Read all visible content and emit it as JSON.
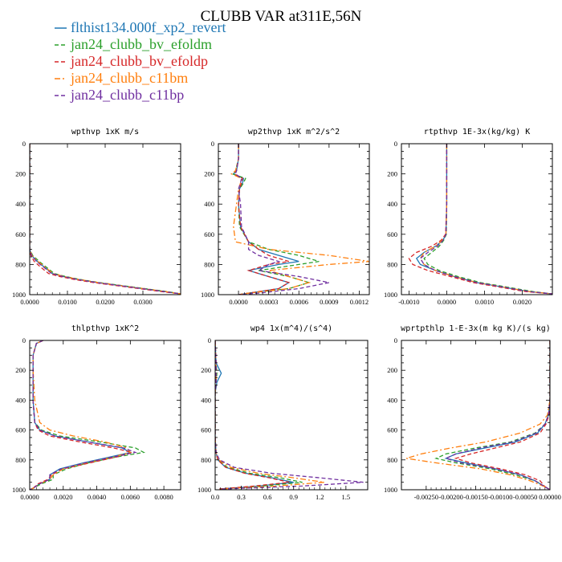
{
  "figure": {
    "title": "CLUBB VAR at311E,56N"
  },
  "legend": [
    {
      "label": "flthist134.000f_xp2_revert",
      "color": "#1f77b4",
      "dash": "solid"
    },
    {
      "label": "jan24_clubb_bv_efoldm",
      "color": "#2ca02c",
      "dash": "dashed"
    },
    {
      "label": "jan24_clubb_bv_efoldp",
      "color": "#d62728",
      "dash": "dashed"
    },
    {
      "label": "jan24_clubb_c11bm",
      "color": "#ff7f0e",
      "dash": "dashdot"
    },
    {
      "label": "jan24_clubb_c11bp",
      "color": "#7030a0",
      "dash": "dashed"
    }
  ],
  "chart_data": [
    {
      "type": "line",
      "title": "wpthvp  1xK m/s",
      "ylim": [
        1000,
        0
      ],
      "yticks": [
        0,
        200,
        400,
        600,
        800,
        1000
      ],
      "xlim": [
        0,
        0.04
      ],
      "xticks": [
        0,
        0.01,
        0.02,
        0.03
      ],
      "xticklabels": [
        "0.0000",
        "0.0100",
        "0.0200",
        "0.0300"
      ],
      "y": [
        0,
        200,
        400,
        600,
        700,
        740,
        780,
        820,
        860,
        880,
        900,
        920,
        940,
        960,
        980,
        995
      ],
      "series": [
        {
          "name": "flthist134.000f_xp2_revert",
          "x": [
            0,
            0,
            0,
            0,
            0,
            0.0005,
            0.002,
            0.004,
            0.006,
            0.009,
            0.013,
            0.018,
            0.024,
            0.03,
            0.036,
            0.04
          ]
        },
        {
          "name": "jan24_clubb_bv_efoldm",
          "x": [
            0,
            0,
            0,
            0,
            0,
            0.0008,
            0.0025,
            0.0045,
            0.0065,
            0.0095,
            0.0135,
            0.0185,
            0.0245,
            0.0305,
            0.0365,
            0.04
          ]
        },
        {
          "name": "jan24_clubb_bv_efoldp",
          "x": [
            0,
            0,
            0,
            0,
            0,
            0.0003,
            0.0012,
            0.003,
            0.005,
            0.008,
            0.012,
            0.017,
            0.023,
            0.029,
            0.035,
            0.04
          ]
        },
        {
          "name": "jan24_clubb_c11bm",
          "x": [
            0,
            0,
            0,
            0,
            0,
            0.0006,
            0.0022,
            0.0042,
            0.0062,
            0.0092,
            0.0132,
            0.0182,
            0.0242,
            0.0302,
            0.0362,
            0.04
          ]
        },
        {
          "name": "jan24_clubb_c11bp",
          "x": [
            0,
            0,
            0,
            0,
            0,
            0.0005,
            0.0018,
            0.0038,
            0.0058,
            0.0088,
            0.0128,
            0.0178,
            0.0238,
            0.0298,
            0.0358,
            0.04
          ]
        }
      ]
    },
    {
      "type": "line",
      "title": "wp2thvp  1xK m^2/s^2",
      "ylim": [
        1000,
        0
      ],
      "yticks": [
        0,
        200,
        400,
        600,
        800,
        1000
      ],
      "xlim": [
        -0.0002,
        0.0013
      ],
      "xticks": [
        0,
        0.0003,
        0.0006,
        0.0009,
        0.0012
      ],
      "xticklabels": [
        "0.0000",
        "0.0003",
        "0.0006",
        "0.0009",
        "0.0012"
      ],
      "y": [
        0,
        100,
        180,
        200,
        230,
        260,
        300,
        400,
        550,
        650,
        700,
        740,
        780,
        800,
        840,
        880,
        920,
        960,
        990,
        1000
      ],
      "series": [
        {
          "name": "flthist134.000f_xp2_revert",
          "x": [
            0,
            0,
            -2e-05,
            -5e-05,
            5e-05,
            4e-05,
            1e-05,
            0,
            2e-05,
            0.0001,
            0.0002,
            0.0004,
            0.0006,
            0.0004,
            0.0001,
            0.0003,
            0.0005,
            0.0004,
            0.0001,
            0
          ]
        },
        {
          "name": "jan24_clubb_bv_efoldm",
          "x": [
            0,
            0,
            -3e-05,
            -6e-05,
            7e-05,
            5e-05,
            1e-05,
            0,
            1e-05,
            0.0001,
            0.0003,
            0.0006,
            0.0008,
            0.0006,
            0.0002,
            0.0005,
            0.0007,
            0.0005,
            0.0001,
            0
          ]
        },
        {
          "name": "jan24_clubb_bv_efoldp",
          "x": [
            0,
            0,
            -2e-05,
            -4e-05,
            4e-05,
            3e-05,
            1e-05,
            0,
            2e-05,
            0.0001,
            0.0002,
            0.0003,
            0.0005,
            0.0003,
            0.0001,
            0.0003,
            0.0005,
            0.0004,
            0.0001,
            0
          ]
        },
        {
          "name": "jan24_clubb_c11bm",
          "x": [
            0,
            0,
            -3e-05,
            -7e-05,
            3e-05,
            2e-05,
            0,
            -2e-05,
            -5e-05,
            -3e-05,
            0.0003,
            0.0009,
            0.0013,
            0.0009,
            0.0003,
            0.0005,
            0.0007,
            0.0005,
            0.0001,
            0
          ]
        },
        {
          "name": "jan24_clubb_c11bp",
          "x": [
            0,
            0,
            -2e-05,
            -3e-05,
            3e-05,
            2e-05,
            0,
            2e-05,
            3e-05,
            0.0001,
            0.0001,
            0.0002,
            0.0004,
            0.0003,
            0.0002,
            0.0006,
            0.0009,
            0.0006,
            0.0002,
            0
          ]
        }
      ]
    },
    {
      "type": "line",
      "title": "rtpthvp  1E-3x(kg/kg) K",
      "ylim": [
        1000,
        0
      ],
      "yticks": [
        0,
        200,
        400,
        600,
        800,
        1000
      ],
      "xlim": [
        -0.0012,
        0.0028
      ],
      "xticks": [
        -0.001,
        0,
        0.001,
        0.002
      ],
      "xticklabels": [
        "-0.0010",
        "0.0000",
        "0.0010",
        "0.0020"
      ],
      "y": [
        0,
        200,
        400,
        600,
        640,
        680,
        720,
        760,
        800,
        840,
        880,
        920,
        950,
        980,
        995
      ],
      "series": [
        {
          "name": "flthist134.000f_xp2_revert",
          "x": [
            0,
            0,
            0,
            -2e-05,
            -0.0001,
            -0.0003,
            -0.0006,
            -0.0008,
            -0.0007,
            -0.0003,
            0.0002,
            0.0008,
            0.0015,
            0.0022,
            0.0028
          ]
        },
        {
          "name": "jan24_clubb_bv_efoldm",
          "x": [
            0,
            0,
            0,
            -1e-05,
            -8e-05,
            -0.0002,
            -0.0004,
            -0.0006,
            -0.0005,
            -0.0002,
            0.0003,
            0.0009,
            0.0016,
            0.0023,
            0.0028
          ]
        },
        {
          "name": "jan24_clubb_bv_efoldp",
          "x": [
            0,
            0,
            0,
            -3e-05,
            -0.00015,
            -0.0004,
            -0.0008,
            -0.001,
            -0.0009,
            -0.0005,
            0.0001,
            0.0007,
            0.0014,
            0.0021,
            0.0028
          ]
        },
        {
          "name": "jan24_clubb_c11bm",
          "x": [
            0,
            0,
            0,
            -2e-05,
            -0.00012,
            -0.0003,
            -0.0006,
            -0.0007,
            -0.0006,
            -0.0003,
            0.0002,
            0.0008,
            0.0015,
            0.0022,
            0.0028
          ]
        },
        {
          "name": "jan24_clubb_c11bp",
          "x": [
            0,
            0,
            0,
            -2e-05,
            -0.0001,
            -0.00025,
            -0.0005,
            -0.0007,
            -0.0006,
            -0.0003,
            0.0002,
            0.0008,
            0.0015,
            0.0022,
            0.0028
          ]
        }
      ]
    },
    {
      "type": "line",
      "title": "thlpthvp  1xK^2",
      "ylim": [
        1000,
        0
      ],
      "yticks": [
        0,
        200,
        400,
        600,
        800,
        1000
      ],
      "xlim": [
        0,
        0.009
      ],
      "xticks": [
        0,
        0.002,
        0.004,
        0.006,
        0.008
      ],
      "xticklabels": [
        "0.0000",
        "0.0020",
        "0.0040",
        "0.0060",
        "0.0080"
      ],
      "y": [
        0,
        20,
        100,
        200,
        400,
        550,
        600,
        640,
        680,
        720,
        750,
        780,
        820,
        860,
        900,
        930,
        960,
        990,
        1000
      ],
      "series": [
        {
          "name": "flthist134.000f_xp2_revert",
          "x": [
            0.0008,
            0.0004,
            0.0002,
            0.0002,
            0.0002,
            0.0003,
            0.0006,
            0.0015,
            0.0035,
            0.0055,
            0.006,
            0.0048,
            0.0032,
            0.0018,
            0.0012,
            0.0012,
            0.0006,
            0.0002,
            0
          ]
        },
        {
          "name": "jan24_clubb_bv_efoldm",
          "x": [
            0.0008,
            0.0004,
            0.0002,
            0.0002,
            0.0002,
            0.0003,
            0.0007,
            0.0018,
            0.0042,
            0.0063,
            0.0068,
            0.0052,
            0.0035,
            0.0022,
            0.0014,
            0.0014,
            0.0007,
            0.0002,
            0
          ]
        },
        {
          "name": "jan24_clubb_bv_efoldp",
          "x": [
            0.0008,
            0.0004,
            0.0002,
            0.0002,
            0.0002,
            0.0003,
            0.0005,
            0.0012,
            0.003,
            0.005,
            0.0061,
            0.0052,
            0.0036,
            0.002,
            0.0013,
            0.0011,
            0.0005,
            0.0002,
            0
          ]
        },
        {
          "name": "jan24_clubb_c11bm",
          "x": [
            0.0008,
            0.0004,
            0.0002,
            0.0002,
            0.0003,
            0.0006,
            0.0012,
            0.0026,
            0.0045,
            0.0058,
            0.006,
            0.005,
            0.0034,
            0.002,
            0.0014,
            0.0012,
            0.0006,
            0.0002,
            0
          ]
        },
        {
          "name": "jan24_clubb_c11bp",
          "x": [
            0.0008,
            0.0004,
            0.0002,
            0.0002,
            0.0002,
            0.0003,
            0.0006,
            0.0015,
            0.0035,
            0.0056,
            0.0063,
            0.005,
            0.0033,
            0.0019,
            0.0012,
            0.0012,
            0.0006,
            0.0002,
            0
          ]
        }
      ]
    },
    {
      "type": "line",
      "title": "wp4  1x(m^4)/(s^4)",
      "ylim": [
        1000,
        0
      ],
      "yticks": [
        0,
        200,
        400,
        600,
        800,
        1000
      ],
      "xlim": [
        0,
        1.75
      ],
      "xticks": [
        0,
        0.3,
        0.6,
        0.9,
        1.2,
        1.5
      ],
      "xticklabels": [
        "0.0",
        "0.3",
        "0.6",
        "0.9",
        "1.2",
        "1.5"
      ],
      "y": [
        0,
        150,
        220,
        280,
        350,
        500,
        650,
        750,
        800,
        850,
        890,
        920,
        950,
        975,
        995
      ],
      "series": [
        {
          "name": "flthist134.000f_xp2_revert",
          "x": [
            0,
            0.01,
            0.07,
            0.02,
            0,
            0,
            0,
            0.01,
            0.03,
            0.12,
            0.35,
            0.65,
            0.9,
            0.5,
            0.05
          ]
        },
        {
          "name": "jan24_clubb_bv_efoldm",
          "x": [
            0,
            0.01,
            0.02,
            0.01,
            0,
            0,
            0,
            0.01,
            0.03,
            0.14,
            0.4,
            0.75,
            1.0,
            0.55,
            0.05
          ]
        },
        {
          "name": "jan24_clubb_bv_efoldp",
          "x": [
            0,
            0.01,
            0.01,
            0.01,
            0,
            0,
            0,
            0.01,
            0.03,
            0.12,
            0.34,
            0.62,
            0.85,
            0.45,
            0.05
          ]
        },
        {
          "name": "jan24_clubb_c11bm",
          "x": [
            0,
            0.01,
            0.01,
            0.01,
            0,
            0,
            0,
            0.01,
            0.04,
            0.18,
            0.5,
            0.9,
            1.25,
            0.7,
            0.06
          ]
        },
        {
          "name": "jan24_clubb_c11bp",
          "x": [
            0,
            0.01,
            0.01,
            0.01,
            0,
            0,
            0,
            0.01,
            0.05,
            0.22,
            0.65,
            1.2,
            1.7,
            1.0,
            0.08
          ]
        }
      ]
    },
    {
      "type": "line",
      "title": "wprtpthlp  1-E-3x(m kg K)/(s kg)",
      "ylim": [
        1000,
        0
      ],
      "yticks": [
        0,
        200,
        400,
        600,
        800,
        1000
      ],
      "xlim": [
        -0.003,
        0
      ],
      "xticks": [
        -0.0025,
        -0.002,
        -0.0015,
        -0.001,
        -0.0005,
        0
      ],
      "xticklabels": [
        "-0.00250",
        "-0.00200",
        "-0.00150",
        "-0.00100",
        "-0.00050",
        "0.00000"
      ],
      "y": [
        0,
        200,
        400,
        500,
        560,
        620,
        680,
        720,
        760,
        790,
        820,
        860,
        900,
        940,
        980,
        1000
      ],
      "series": [
        {
          "name": "flthist134.000f_xp2_revert",
          "x": [
            0,
            0,
            0,
            -3e-05,
            -0.0001,
            -0.00025,
            -0.0007,
            -0.0013,
            -0.0019,
            -0.0021,
            -0.0017,
            -0.0011,
            -0.0006,
            -0.0003,
            -0.0001,
            0
          ]
        },
        {
          "name": "jan24_clubb_bv_efoldm",
          "x": [
            0,
            0,
            0,
            -3e-05,
            -0.0001,
            -0.0003,
            -0.0008,
            -0.0015,
            -0.0021,
            -0.0023,
            -0.0019,
            -0.0012,
            -0.0007,
            -0.0003,
            -0.0001,
            0
          ]
        },
        {
          "name": "jan24_clubb_bv_efoldp",
          "x": [
            0,
            0,
            0,
            -2e-05,
            -8e-05,
            -0.0002,
            -0.0006,
            -0.0011,
            -0.0016,
            -0.0019,
            -0.0016,
            -0.001,
            -0.0005,
            -0.0002,
            -0.0001,
            0
          ]
        },
        {
          "name": "jan24_clubb_c11bm",
          "x": [
            0,
            0,
            0,
            -5e-05,
            -0.0002,
            -0.0006,
            -0.0013,
            -0.002,
            -0.0026,
            -0.0029,
            -0.0023,
            -0.0014,
            -0.0008,
            -0.0004,
            -0.0001,
            0
          ]
        },
        {
          "name": "jan24_clubb_c11bp",
          "x": [
            0,
            0,
            0,
            -3e-05,
            -0.0001,
            -0.00028,
            -0.00075,
            -0.0014,
            -0.0019,
            -0.0021,
            -0.0018,
            -0.0011,
            -0.0006,
            -0.0003,
            -0.0001,
            0
          ]
        }
      ]
    }
  ]
}
